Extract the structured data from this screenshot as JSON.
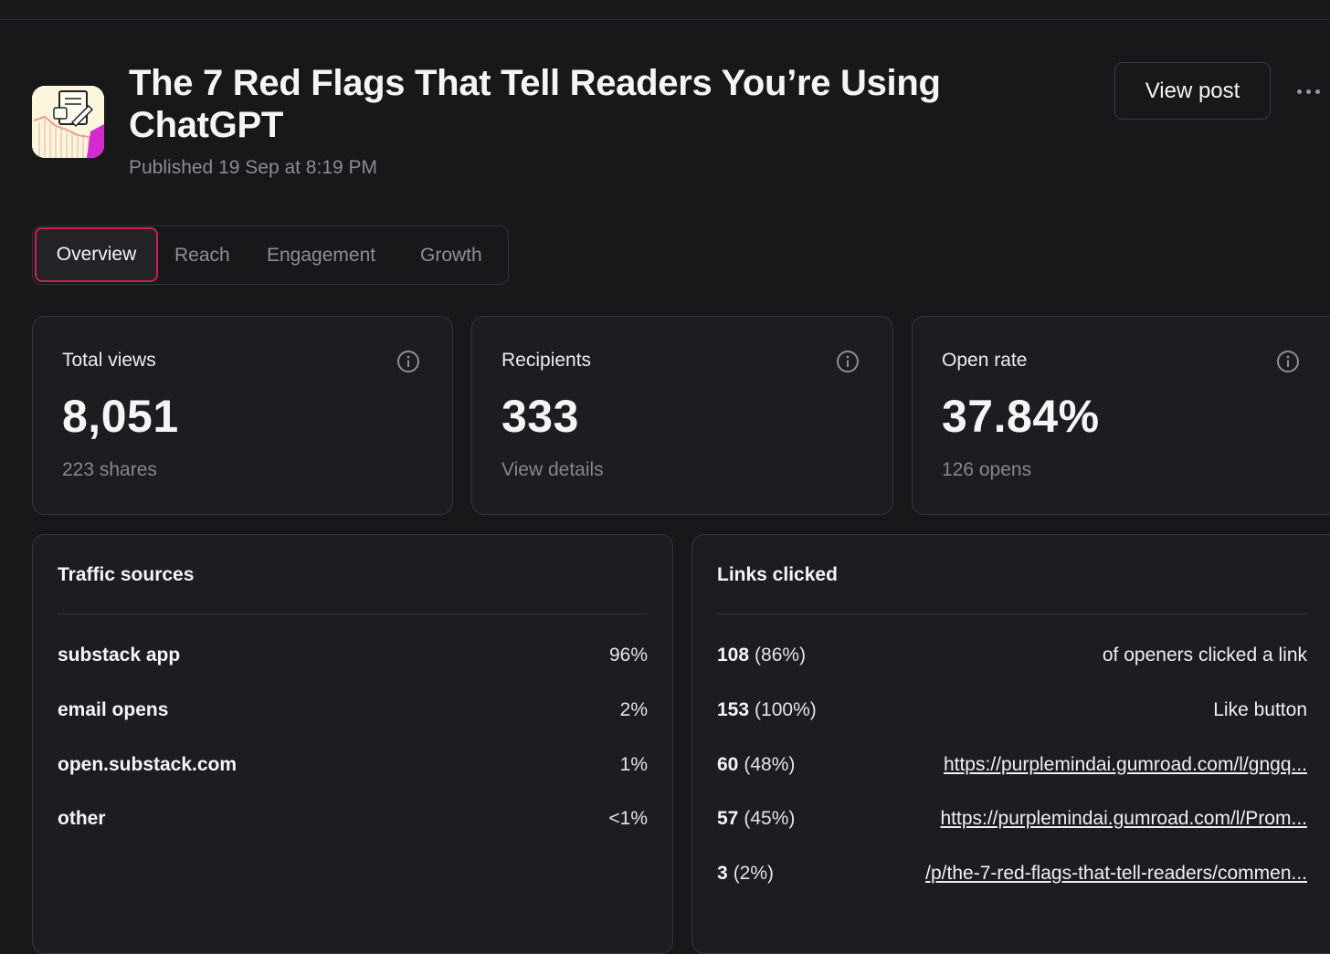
{
  "post": {
    "title": "The 7 Red Flags That Tell Readers You’re Using ChatGPT",
    "published": "Published 19 Sep at 8:19 PM",
    "view_post_label": "View post"
  },
  "tabs": [
    {
      "label": "Overview",
      "active": true
    },
    {
      "label": "Reach",
      "active": false
    },
    {
      "label": "Engagement",
      "active": false
    },
    {
      "label": "Growth",
      "active": false
    }
  ],
  "stats": [
    {
      "label": "Total views",
      "value": "8,051",
      "sub": "223 shares"
    },
    {
      "label": "Recipients",
      "value": "333",
      "sub": "View details"
    },
    {
      "label": "Open rate",
      "value": "37.84%",
      "sub": "126 opens"
    }
  ],
  "traffic": {
    "title": "Traffic sources",
    "rows": [
      {
        "name": "substack app",
        "pct": "96%"
      },
      {
        "name": "email opens",
        "pct": "2%"
      },
      {
        "name": "open.substack.com",
        "pct": "1%"
      },
      {
        "name": "other",
        "pct": "<1%"
      }
    ]
  },
  "links": {
    "title": "Links clicked",
    "rows": [
      {
        "count": "108",
        "pct": "(86%)",
        "target": "of openers clicked a link"
      },
      {
        "count": "153",
        "pct": "(100%)",
        "target": "Like button"
      },
      {
        "count": "60",
        "pct": "(48%)",
        "target": "https://purplemindai.gumroad.com/l/gngq..."
      },
      {
        "count": "57",
        "pct": "(45%)",
        "target": "https://purplemindai.gumroad.com/l/Prom..."
      },
      {
        "count": "3",
        "pct": "(2%)",
        "target": "/p/the-7-red-flags-that-tell-readers/commen..."
      }
    ]
  },
  "colors": {
    "background": "#17181a",
    "card": "#1c1d20",
    "active_tab_border": "#d21f4f"
  },
  "icons": [
    "post-thumbnail-icon",
    "more-options-icon",
    "info-icon"
  ]
}
